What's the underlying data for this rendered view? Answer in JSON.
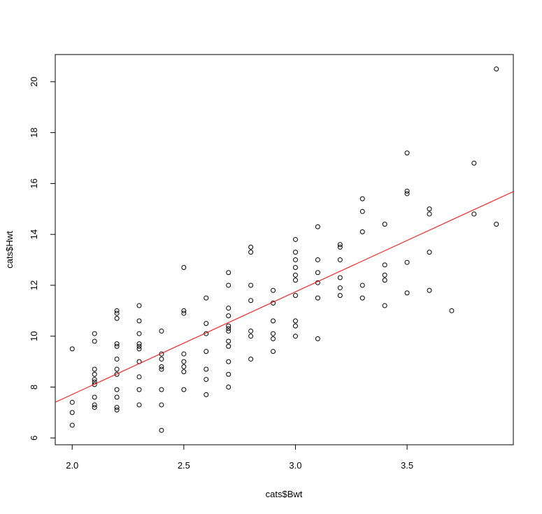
{
  "chart_data": {
    "type": "scatter",
    "x_label": "cats$Bwt",
    "y_label": "cats$Hwt",
    "xlim": [
      1.924,
      3.976
    ],
    "ylim": [
      5.732,
      21.068
    ],
    "xticks": [
      {
        "value": 2,
        "label": "2.0"
      },
      2.5,
      {
        "value": 3,
        "label": "3.0"
      },
      3.5
    ],
    "yticks": [
      6,
      8,
      10,
      12,
      14,
      16,
      18,
      20
    ],
    "series": [
      {
        "color": "#000000",
        "x": [
          2.0,
          2.0,
          2.0,
          2.0,
          2.1,
          2.1,
          2.1,
          2.1,
          2.1,
          2.1,
          2.1,
          2.1,
          2.1,
          2.1,
          2.2,
          2.2,
          2.2,
          2.2,
          2.2,
          2.2,
          2.2,
          2.2,
          2.2,
          2.2,
          2.2,
          2.2,
          2.3,
          2.3,
          2.3,
          2.3,
          2.3,
          2.3,
          2.3,
          2.3,
          2.3,
          2.3,
          2.4,
          2.4,
          2.4,
          2.4,
          2.4,
          2.4,
          2.4,
          2.4,
          2.5,
          2.5,
          2.5,
          2.5,
          2.5,
          2.5,
          2.5,
          2.5,
          2.6,
          2.6,
          2.6,
          2.6,
          2.6,
          2.6,
          2.6,
          2.7,
          2.7,
          2.7,
          2.7,
          2.7,
          2.7,
          2.7,
          2.7,
          2.7,
          2.7,
          2.7,
          2.7,
          2.8,
          2.8,
          2.8,
          2.8,
          2.8,
          2.8,
          2.8,
          2.9,
          2.9,
          2.9,
          2.9,
          2.9,
          2.9,
          3.0,
          3.0,
          3.0,
          3.0,
          3.0,
          3.0,
          3.0,
          3.0,
          3.0,
          3.0,
          3.1,
          3.1,
          3.1,
          3.1,
          3.1,
          3.1,
          3.2,
          3.2,
          3.2,
          3.2,
          3.2,
          3.2,
          3.3,
          3.3,
          3.3,
          3.3,
          3.3,
          3.4,
          3.4,
          3.4,
          3.4,
          3.4,
          3.5,
          3.5,
          3.5,
          3.5,
          3.5,
          3.6,
          3.6,
          3.6,
          3.6,
          3.7,
          3.8,
          3.8,
          3.9,
          3.9
        ],
        "values": [
          9.5,
          7.4,
          7.0,
          6.5,
          10.1,
          9.8,
          8.7,
          8.5,
          8.3,
          8.2,
          8.1,
          7.6,
          7.3,
          7.2,
          11.0,
          10.9,
          10.7,
          9.7,
          9.6,
          9.1,
          8.7,
          8.5,
          7.9,
          7.6,
          7.2,
          7.1,
          11.2,
          10.6,
          10.1,
          9.7,
          9.6,
          9.5,
          9.0,
          8.4,
          7.9,
          7.3,
          10.2,
          9.3,
          9.1,
          8.8,
          8.7,
          7.9,
          7.3,
          6.3,
          12.7,
          11.0,
          10.9,
          9.3,
          9.0,
          8.8,
          8.6,
          7.9,
          11.5,
          10.5,
          10.1,
          9.4,
          8.7,
          8.3,
          7.7,
          12.5,
          12.0,
          11.1,
          10.8,
          10.4,
          10.3,
          10.2,
          9.8,
          9.6,
          9.0,
          8.5,
          8.0,
          13.5,
          13.3,
          12.0,
          11.4,
          10.2,
          10.0,
          9.1,
          11.8,
          11.3,
          10.6,
          10.1,
          9.9,
          9.4,
          13.8,
          13.3,
          13.0,
          12.7,
          12.4,
          12.2,
          11.6,
          10.6,
          10.4,
          10.0,
          14.3,
          13.0,
          12.5,
          12.1,
          11.5,
          9.9,
          13.6,
          13.5,
          13.0,
          12.3,
          11.9,
          11.6,
          15.4,
          14.9,
          14.1,
          12.0,
          11.5,
          14.4,
          12.8,
          12.4,
          12.2,
          11.2,
          17.2,
          15.7,
          15.6,
          12.9,
          11.7,
          15.0,
          14.8,
          13.3,
          11.8,
          11.0,
          16.8,
          14.8,
          20.5,
          14.4
        ]
      }
    ],
    "fit": {
      "intercept": -0.357,
      "slope": 4.034,
      "color": "#ff0000"
    }
  }
}
